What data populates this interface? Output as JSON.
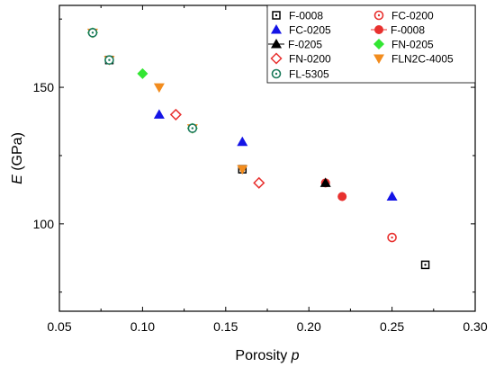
{
  "chart_data": {
    "type": "scatter",
    "xlabel": {
      "text": "Porosity ",
      "var": "p"
    },
    "ylabel": {
      "var": "E",
      "text": " (GPa)"
    },
    "xlim": [
      0.05,
      0.3
    ],
    "ylim": [
      68,
      180
    ],
    "xticks": [
      "0.05",
      "0.10",
      "0.15",
      "0.20",
      "0.25",
      "0.30"
    ],
    "xtick_values": [
      0.05,
      0.1,
      0.15,
      0.2,
      0.25,
      0.3
    ],
    "yticks": [
      "100",
      "150"
    ],
    "ytick_values": [
      100,
      150
    ],
    "grid": false,
    "legend_position": "top-right",
    "series": [
      {
        "name": "F-0008",
        "marker": "square-open-dot",
        "color": "#000000",
        "points": [
          [
            0.08,
            160
          ],
          [
            0.16,
            120
          ],
          [
            0.27,
            85
          ]
        ]
      },
      {
        "name": "FC-0200",
        "marker": "circle-open-dot",
        "color": "#e8312f",
        "points": [
          [
            0.25,
            95
          ]
        ]
      },
      {
        "name": "FC-0205",
        "marker": "triangle",
        "color": "#1414e6",
        "points": [
          [
            0.11,
            140
          ],
          [
            0.16,
            130
          ],
          [
            0.25,
            110
          ]
        ]
      },
      {
        "name": "F-0008",
        "marker": "circle-line",
        "color": "#e8312f",
        "points": [
          [
            0.21,
            115
          ],
          [
            0.22,
            110
          ]
        ]
      },
      {
        "name": "F-0205",
        "marker": "triangle-line",
        "color": "#000000",
        "points": [
          [
            0.21,
            115
          ]
        ]
      },
      {
        "name": "FN-0205",
        "marker": "diamond",
        "color": "#33e633",
        "points": [
          [
            0.07,
            170
          ],
          [
            0.1,
            155
          ],
          [
            0.13,
            135
          ]
        ]
      },
      {
        "name": "FN-0200",
        "marker": "diamond-open",
        "color": "#e8312f",
        "points": [
          [
            0.12,
            140
          ],
          [
            0.17,
            115
          ]
        ]
      },
      {
        "name": "FLN2C-4005",
        "marker": "triangle-down",
        "color": "#f28c1e",
        "points": [
          [
            0.07,
            170
          ],
          [
            0.08,
            160
          ],
          [
            0.11,
            150
          ],
          [
            0.13,
            135
          ],
          [
            0.16,
            120
          ]
        ]
      },
      {
        "name": "FL-5305",
        "marker": "circle-open-dot",
        "color": "#1a7a5a",
        "points": [
          [
            0.07,
            170
          ],
          [
            0.08,
            160
          ],
          [
            0.13,
            135
          ]
        ]
      }
    ]
  }
}
